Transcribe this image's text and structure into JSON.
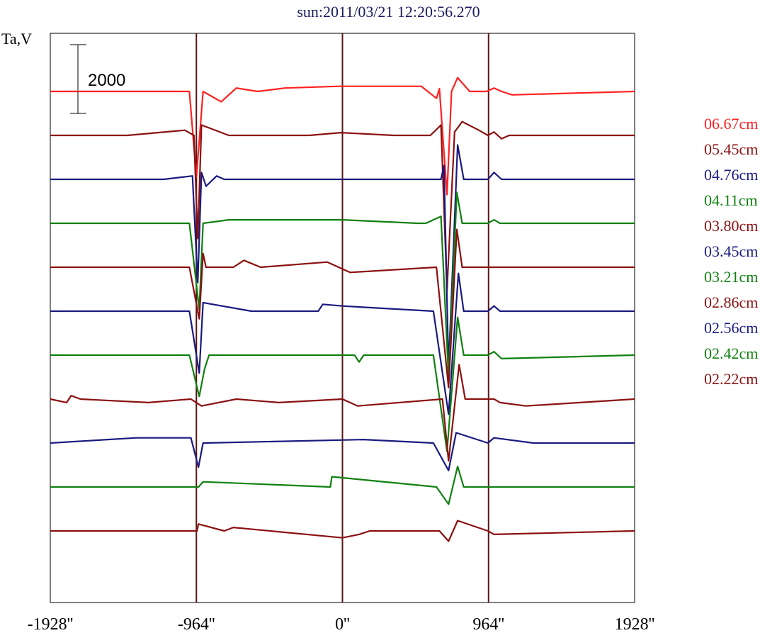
{
  "title": "sun:2011/03/21 12:20:56.270",
  "ylabel": "Ta,V",
  "scale_bar_label": "2000",
  "chart_data": {
    "type": "line",
    "title": "sun:2011/03/21 12:20:56.270",
    "ylabel": "Ta,V",
    "xlim": [
      -1928,
      1928
    ],
    "x_ticks": [
      -1928,
      -964,
      0,
      964,
      1928
    ],
    "x_tick_labels": [
      "-1928''",
      "-964''",
      "0''",
      "964''",
      "1928''"
    ],
    "vertical_lines": [
      -964,
      0,
      964
    ],
    "scale_bar": 2000,
    "series": [
      {
        "name": "06.67cm",
        "color": "#ff2020",
        "x": [
          -1928,
          -1010,
          -964,
          -920,
          -800,
          -700,
          -560,
          -380,
          -20,
          520,
          620,
          640,
          690,
          720,
          760,
          840,
          950,
          1000,
          1050,
          1120,
          1928
        ],
        "y": [
          0,
          0,
          -2500,
          0,
          -300,
          100,
          0,
          100,
          150,
          150,
          -200,
          80,
          -3000,
          0,
          400,
          0,
          0,
          100,
          0,
          -100,
          0
        ]
      },
      {
        "name": "05.45cm",
        "color": "#8b1010",
        "x": [
          -1928,
          -1420,
          -1040,
          -980,
          -955,
          -930,
          -750,
          -220,
          -10,
          340,
          580,
          650,
          690,
          740,
          790,
          900,
          960,
          1000,
          1050,
          1100,
          1928
        ],
        "y": [
          0,
          0,
          150,
          0,
          -3000,
          300,
          0,
          0,
          80,
          0,
          0,
          300,
          -4500,
          100,
          400,
          150,
          0,
          100,
          -100,
          0,
          0
        ]
      },
      {
        "name": "04.76cm",
        "color": "#1a1a80",
        "x": [
          -1928,
          -1180,
          -990,
          -955,
          -930,
          -900,
          -830,
          -780,
          650,
          670,
          700,
          760,
          800,
          960,
          1000,
          1050,
          1928
        ],
        "y": [
          0,
          0,
          100,
          -3000,
          200,
          -200,
          100,
          0,
          0,
          400,
          -5500,
          1000,
          0,
          0,
          200,
          0,
          0
        ]
      },
      {
        "name": "04.11cm",
        "color": "#108010",
        "x": [
          -1928,
          -1010,
          -945,
          -920,
          -750,
          0,
          500,
          550,
          650,
          700,
          755,
          790,
          960,
          1000,
          1040,
          1928
        ],
        "y": [
          0,
          0,
          -2500,
          0,
          100,
          100,
          0,
          0,
          200,
          -4500,
          900,
          0,
          0,
          100,
          0,
          0
        ]
      },
      {
        "name": "03.80cm",
        "color": "#8b1010",
        "x": [
          -1928,
          -1010,
          -945,
          -920,
          -900,
          -720,
          -650,
          -540,
          -100,
          50,
          620,
          700,
          755,
          790,
          1928
        ],
        "y": [
          0,
          0,
          -1500,
          400,
          0,
          0,
          200,
          0,
          150,
          -150,
          0,
          -3500,
          1100,
          0,
          0
        ]
      },
      {
        "name": "03.45cm",
        "color": "#1a1a80",
        "x": [
          -1928,
          -1010,
          -945,
          -920,
          -600,
          -160,
          -130,
          0,
          600,
          700,
          765,
          800,
          960,
          1000,
          1040,
          1928
        ],
        "y": [
          0,
          0,
          -1800,
          250,
          0,
          0,
          200,
          150,
          0,
          -3000,
          1100,
          0,
          0,
          150,
          0,
          0
        ]
      },
      {
        "name": "03.21cm",
        "color": "#108010",
        "x": [
          -1928,
          -1010,
          -945,
          -910,
          -880,
          80,
          110,
          140,
          600,
          690,
          760,
          800,
          960,
          1000,
          1050,
          1928
        ],
        "y": [
          0,
          0,
          -1200,
          -400,
          0,
          0,
          -200,
          0,
          0,
          -2800,
          1100,
          0,
          0,
          100,
          -100,
          0
        ]
      },
      {
        "name": "02.86cm",
        "color": "#8b1010",
        "x": [
          -1928,
          -1820,
          -1790,
          -1730,
          -1280,
          -1000,
          -930,
          -700,
          -420,
          0,
          100,
          660,
          700,
          770,
          810,
          1000,
          1040,
          1210,
          1928
        ],
        "y": [
          0,
          -100,
          100,
          0,
          -100,
          0,
          -200,
          0,
          -100,
          0,
          -200,
          0,
          -1800,
          1000,
          0,
          0,
          -100,
          -200,
          0
        ]
      },
      {
        "name": "02.56cm",
        "color": "#1a1a80",
        "x": [
          -1928,
          -1360,
          -1000,
          -950,
          -920,
          140,
          600,
          700,
          750,
          960,
          1000,
          1260,
          1928
        ],
        "y": [
          0,
          150,
          150,
          -700,
          0,
          100,
          0,
          -800,
          300,
          0,
          150,
          0,
          0
        ]
      },
      {
        "name": "02.42cm",
        "color": "#108010",
        "x": [
          -1928,
          -950,
          -920,
          -80,
          -70,
          620,
          700,
          760,
          800,
          1928
        ],
        "y": [
          0,
          0,
          150,
          0,
          300,
          0,
          -500,
          600,
          0,
          0
        ]
      },
      {
        "name": "02.22cm",
        "color": "#8b1010",
        "x": [
          -1928,
          -960,
          -950,
          -780,
          -720,
          0,
          110,
          180,
          640,
          700,
          760,
          960,
          1000,
          1928
        ],
        "y": [
          0,
          0,
          200,
          0,
          100,
          -200,
          -100,
          0,
          0,
          -300,
          300,
          0,
          -100,
          0
        ]
      }
    ]
  },
  "colors": {
    "frame": "#000000",
    "vertical_line": "#5a1414",
    "title": "#1a1a5e"
  }
}
